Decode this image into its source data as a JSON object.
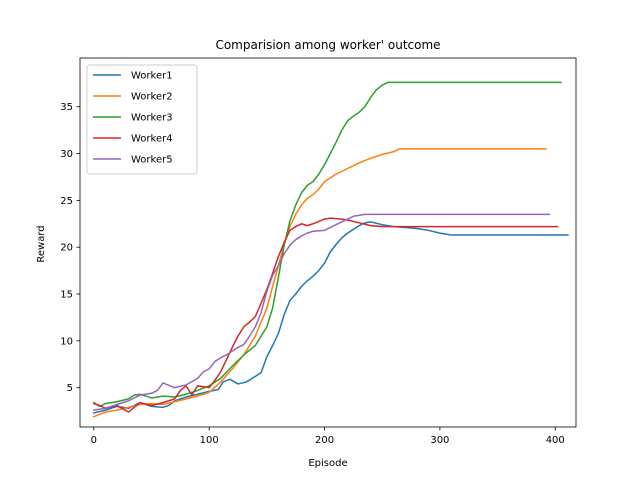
{
  "chart_data": {
    "type": "line",
    "title": "Comparision among worker' outcome",
    "xlabel": "Episode",
    "ylabel": "Reward",
    "xlim": [
      -12,
      418
    ],
    "ylim": [
      0.8,
      40.2
    ],
    "xticks": [
      0,
      100,
      200,
      300,
      400
    ],
    "yticks": [
      5,
      10,
      15,
      20,
      25,
      30,
      35
    ],
    "grid": false,
    "legend_position": "top-left",
    "series": [
      {
        "name": "Worker1",
        "color": "#1f77b4",
        "points": [
          [
            0,
            2.3
          ],
          [
            10,
            2.6
          ],
          [
            20,
            3.0
          ],
          [
            30,
            2.8
          ],
          [
            40,
            3.4
          ],
          [
            50,
            3.0
          ],
          [
            60,
            2.9
          ],
          [
            65,
            3.1
          ],
          [
            70,
            3.6
          ],
          [
            80,
            4.0
          ],
          [
            90,
            4.3
          ],
          [
            100,
            4.6
          ],
          [
            108,
            4.8
          ],
          [
            112,
            5.6
          ],
          [
            118,
            5.9
          ],
          [
            125,
            5.4
          ],
          [
            132,
            5.6
          ],
          [
            140,
            6.2
          ],
          [
            145,
            6.6
          ],
          [
            150,
            8.3
          ],
          [
            155,
            9.5
          ],
          [
            160,
            10.8
          ],
          [
            165,
            12.8
          ],
          [
            170,
            14.3
          ],
          [
            175,
            15.0
          ],
          [
            180,
            15.8
          ],
          [
            185,
            16.4
          ],
          [
            190,
            16.9
          ],
          [
            195,
            17.5
          ],
          [
            200,
            18.3
          ],
          [
            205,
            19.5
          ],
          [
            210,
            20.3
          ],
          [
            215,
            21.0
          ],
          [
            220,
            21.5
          ],
          [
            225,
            21.9
          ],
          [
            230,
            22.3
          ],
          [
            235,
            22.6
          ],
          [
            240,
            22.7
          ],
          [
            250,
            22.4
          ],
          [
            260,
            22.2
          ],
          [
            270,
            22.1
          ],
          [
            280,
            22.0
          ],
          [
            290,
            21.8
          ],
          [
            300,
            21.5
          ],
          [
            310,
            21.3
          ],
          [
            350,
            21.3
          ],
          [
            411,
            21.3
          ]
        ]
      },
      {
        "name": "Worker2",
        "color": "#ff7f0e",
        "points": [
          [
            0,
            1.9
          ],
          [
            10,
            2.4
          ],
          [
            20,
            2.6
          ],
          [
            30,
            2.9
          ],
          [
            40,
            3.2
          ],
          [
            50,
            3.3
          ],
          [
            60,
            3.2
          ],
          [
            70,
            3.5
          ],
          [
            80,
            3.8
          ],
          [
            90,
            4.1
          ],
          [
            100,
            4.5
          ],
          [
            110,
            5.6
          ],
          [
            120,
            7.0
          ],
          [
            130,
            8.5
          ],
          [
            140,
            10.5
          ],
          [
            150,
            13.5
          ],
          [
            155,
            15.8
          ],
          [
            160,
            18.0
          ],
          [
            165,
            20.3
          ],
          [
            170,
            22.2
          ],
          [
            175,
            23.5
          ],
          [
            180,
            24.5
          ],
          [
            185,
            25.2
          ],
          [
            190,
            25.6
          ],
          [
            195,
            26.2
          ],
          [
            200,
            27.0
          ],
          [
            210,
            27.8
          ],
          [
            220,
            28.4
          ],
          [
            230,
            29.0
          ],
          [
            240,
            29.5
          ],
          [
            250,
            29.9
          ],
          [
            260,
            30.2
          ],
          [
            265,
            30.5
          ],
          [
            300,
            30.5
          ],
          [
            350,
            30.5
          ],
          [
            392,
            30.5
          ]
        ]
      },
      {
        "name": "Worker3",
        "color": "#2ca02c",
        "points": [
          [
            0,
            3.4
          ],
          [
            5,
            3.0
          ],
          [
            10,
            3.3
          ],
          [
            20,
            3.5
          ],
          [
            30,
            3.8
          ],
          [
            35,
            4.2
          ],
          [
            40,
            4.3
          ],
          [
            50,
            3.9
          ],
          [
            60,
            4.1
          ],
          [
            70,
            4.0
          ],
          [
            80,
            4.3
          ],
          [
            90,
            4.7
          ],
          [
            100,
            5.2
          ],
          [
            110,
            6.0
          ],
          [
            120,
            7.3
          ],
          [
            130,
            8.5
          ],
          [
            140,
            9.5
          ],
          [
            150,
            11.5
          ],
          [
            155,
            13.5
          ],
          [
            160,
            16.8
          ],
          [
            165,
            20.2
          ],
          [
            170,
            22.8
          ],
          [
            175,
            24.5
          ],
          [
            180,
            25.8
          ],
          [
            185,
            26.6
          ],
          [
            190,
            27.0
          ],
          [
            195,
            27.8
          ],
          [
            200,
            28.8
          ],
          [
            205,
            30.0
          ],
          [
            210,
            31.2
          ],
          [
            215,
            32.5
          ],
          [
            220,
            33.5
          ],
          [
            225,
            34.0
          ],
          [
            230,
            34.4
          ],
          [
            235,
            35.0
          ],
          [
            240,
            36.0
          ],
          [
            245,
            36.8
          ],
          [
            250,
            37.3
          ],
          [
            255,
            37.6
          ],
          [
            300,
            37.6
          ],
          [
            350,
            37.6
          ],
          [
            405,
            37.6
          ]
        ]
      },
      {
        "name": "Worker4",
        "color": "#d62728",
        "points": [
          [
            0,
            3.3
          ],
          [
            5,
            3.1
          ],
          [
            10,
            2.8
          ],
          [
            20,
            3.1
          ],
          [
            30,
            2.4
          ],
          [
            40,
            3.4
          ],
          [
            50,
            3.1
          ],
          [
            60,
            3.4
          ],
          [
            70,
            3.8
          ],
          [
            75,
            4.7
          ],
          [
            80,
            5.2
          ],
          [
            85,
            4.2
          ],
          [
            90,
            5.2
          ],
          [
            100,
            5.0
          ],
          [
            105,
            5.8
          ],
          [
            110,
            6.7
          ],
          [
            115,
            8.0
          ],
          [
            120,
            9.3
          ],
          [
            125,
            10.5
          ],
          [
            130,
            11.5
          ],
          [
            135,
            12.0
          ],
          [
            140,
            12.6
          ],
          [
            145,
            14.0
          ],
          [
            150,
            15.5
          ],
          [
            155,
            17.2
          ],
          [
            160,
            19.0
          ],
          [
            165,
            20.5
          ],
          [
            170,
            21.8
          ],
          [
            175,
            22.2
          ],
          [
            180,
            22.5
          ],
          [
            185,
            22.3
          ],
          [
            190,
            22.5
          ],
          [
            200,
            23.0
          ],
          [
            205,
            23.1
          ],
          [
            215,
            23.0
          ],
          [
            220,
            22.9
          ],
          [
            230,
            22.6
          ],
          [
            240,
            22.3
          ],
          [
            250,
            22.2
          ],
          [
            300,
            22.2
          ],
          [
            350,
            22.2
          ],
          [
            402,
            22.2
          ]
        ]
      },
      {
        "name": "Worker5",
        "color": "#9467bd",
        "points": [
          [
            0,
            2.6
          ],
          [
            10,
            2.8
          ],
          [
            20,
            3.2
          ],
          [
            30,
            3.6
          ],
          [
            40,
            4.2
          ],
          [
            50,
            4.4
          ],
          [
            55,
            4.7
          ],
          [
            60,
            5.5
          ],
          [
            70,
            5.0
          ],
          [
            80,
            5.3
          ],
          [
            90,
            6.0
          ],
          [
            95,
            6.7
          ],
          [
            100,
            7.0
          ],
          [
            105,
            7.8
          ],
          [
            110,
            8.2
          ],
          [
            115,
            8.5
          ],
          [
            120,
            8.9
          ],
          [
            125,
            9.3
          ],
          [
            130,
            9.6
          ],
          [
            135,
            10.5
          ],
          [
            140,
            11.5
          ],
          [
            145,
            13.0
          ],
          [
            150,
            15.3
          ],
          [
            155,
            17.0
          ],
          [
            160,
            18.0
          ],
          [
            165,
            19.3
          ],
          [
            170,
            20.2
          ],
          [
            175,
            20.8
          ],
          [
            180,
            21.2
          ],
          [
            185,
            21.5
          ],
          [
            190,
            21.7
          ],
          [
            200,
            21.8
          ],
          [
            210,
            22.4
          ],
          [
            220,
            23.0
          ],
          [
            225,
            23.3
          ],
          [
            235,
            23.5
          ],
          [
            300,
            23.5
          ],
          [
            350,
            23.5
          ],
          [
            395,
            23.5
          ]
        ]
      }
    ]
  }
}
